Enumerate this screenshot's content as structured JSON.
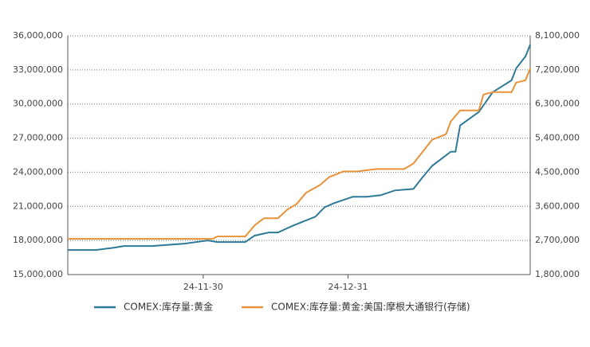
{
  "chart_data": {
    "type": "line",
    "xlim": [
      "24-11-01",
      "25-02-08"
    ],
    "xticks": [
      "24-11-30",
      "24-12-31"
    ],
    "ylim": [
      15000000,
      36000000
    ],
    "yticks": [
      {
        "value": 15000000,
        "label": "15,000,000"
      },
      {
        "value": 18000000,
        "label": "18,000,000"
      },
      {
        "value": 21000000,
        "label": "21,000,000"
      },
      {
        "value": 24000000,
        "label": "24,000,000"
      },
      {
        "value": 27000000,
        "label": "27,000,000"
      },
      {
        "value": 30000000,
        "label": "30,000,000"
      },
      {
        "value": 33000000,
        "label": "33,000,000"
      },
      {
        "value": 36000000,
        "label": "36,000,000"
      }
    ],
    "y2lim": [
      1800000,
      8100000
    ],
    "y2ticks": [
      {
        "value": 1800000,
        "label": "1,800,000"
      },
      {
        "value": 2700000,
        "label": "2,700,000"
      },
      {
        "value": 3600000,
        "label": "3,600,000"
      },
      {
        "value": 4500000,
        "label": "4,500,000"
      },
      {
        "value": 5400000,
        "label": "5,400,000"
      },
      {
        "value": 6300000,
        "label": "6,300,000"
      },
      {
        "value": 7200000,
        "label": "7,200,000"
      },
      {
        "value": 8100000,
        "label": "8,100,000"
      }
    ],
    "grid": true,
    "legend": "bottom",
    "series": [
      {
        "name": "COMEX:库存量:黄金",
        "color": "#2f7a98",
        "axis": "y",
        "x": [
          "24-11-01",
          "24-11-07",
          "24-11-11",
          "24-11-13",
          "24-11-19",
          "24-11-26",
          "24-12-01",
          "24-12-03",
          "24-12-09",
          "24-12-11",
          "24-12-14",
          "24-12-16",
          "24-12-19",
          "24-12-21",
          "24-12-24",
          "24-12-26",
          "24-12-28",
          "25-01-01",
          "25-01-04",
          "25-01-07",
          "25-01-10",
          "25-01-14",
          "25-01-16",
          "25-01-18",
          "25-01-22",
          "25-01-23",
          "25-01-24",
          "25-01-28",
          "25-01-31",
          "25-02-04",
          "25-02-05",
          "25-02-07",
          "25-02-08"
        ],
        "values": [
          17160000,
          17160000,
          17370000,
          17510000,
          17510000,
          17720000,
          18000000,
          17860000,
          17860000,
          18420000,
          18700000,
          18700000,
          19260000,
          19600000,
          20090000,
          20930000,
          21280000,
          21840000,
          21840000,
          21980000,
          22400000,
          22530000,
          23580000,
          24560000,
          25810000,
          25810000,
          28120000,
          29300000,
          31050000,
          32090000,
          33140000,
          34190000,
          35230000
        ]
      },
      {
        "name": "COMEX:库存量:黄金:美国:摩根大通银行(存储)",
        "color": "#e8923a",
        "axis": "y2",
        "x": [
          "24-11-01",
          "24-12-02",
          "24-12-03",
          "24-12-09",
          "24-12-11",
          "24-12-13",
          "24-12-16",
          "24-12-18",
          "24-12-20",
          "24-12-22",
          "24-12-25",
          "24-12-27",
          "24-12-30",
          "25-01-02",
          "25-01-06",
          "25-01-12",
          "25-01-14",
          "25-01-16",
          "25-01-18",
          "25-01-21",
          "25-01-22",
          "25-01-24",
          "25-01-28",
          "25-01-29",
          "25-01-31",
          "25-02-04",
          "25-02-05",
          "25-02-07",
          "25-02-08"
        ],
        "values": [
          2742000,
          2742000,
          2805000,
          2805000,
          3098000,
          3286000,
          3286000,
          3516000,
          3663000,
          3956000,
          4165000,
          4374000,
          4521000,
          4521000,
          4584000,
          4584000,
          4730000,
          5044000,
          5358000,
          5505000,
          5840000,
          6133000,
          6133000,
          6551000,
          6614000,
          6614000,
          6865000,
          6928000,
          7242000
        ]
      }
    ]
  }
}
